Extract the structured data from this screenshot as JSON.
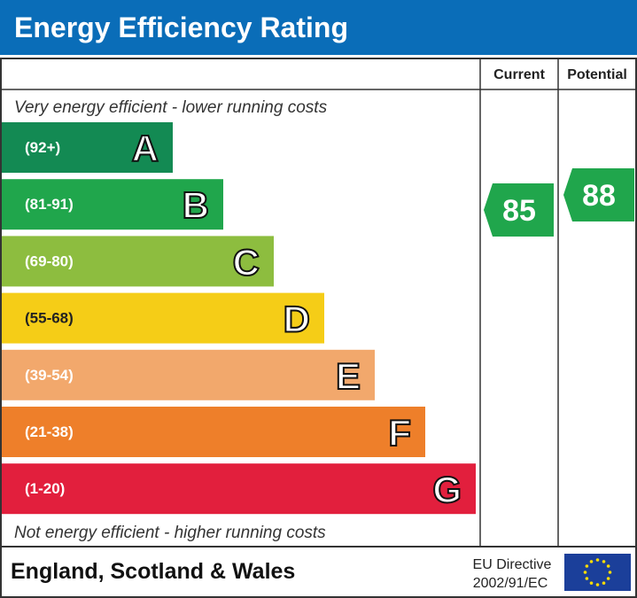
{
  "header": {
    "title": "Energy Efficiency Rating"
  },
  "columns": [
    "Current",
    "Potential"
  ],
  "top_note": "Very energy efficient - lower running costs",
  "bottom_note": "Not energy efficient - higher running costs",
  "bands": [
    {
      "range": "(92+)",
      "letter": "A",
      "color": "#138a53"
    },
    {
      "range": "(81-91)",
      "letter": "B",
      "color": "#20a64c"
    },
    {
      "range": "(69-80)",
      "letter": "C",
      "color": "#8dbd3f"
    },
    {
      "range": "(55-68)",
      "letter": "D",
      "color": "#f5cd17"
    },
    {
      "range": "(39-54)",
      "letter": "E",
      "color": "#f2a86c"
    },
    {
      "range": "(21-38)",
      "letter": "F",
      "color": "#ee7f2a"
    },
    {
      "range": "(1-20)",
      "letter": "G",
      "color": "#e21f3d"
    }
  ],
  "ratings": {
    "current": 85,
    "potential": 88,
    "color": "#20a64c"
  },
  "footer": {
    "region": "England, Scotland & Wales",
    "directive": [
      "EU Directive",
      "2002/91/EC"
    ]
  }
}
